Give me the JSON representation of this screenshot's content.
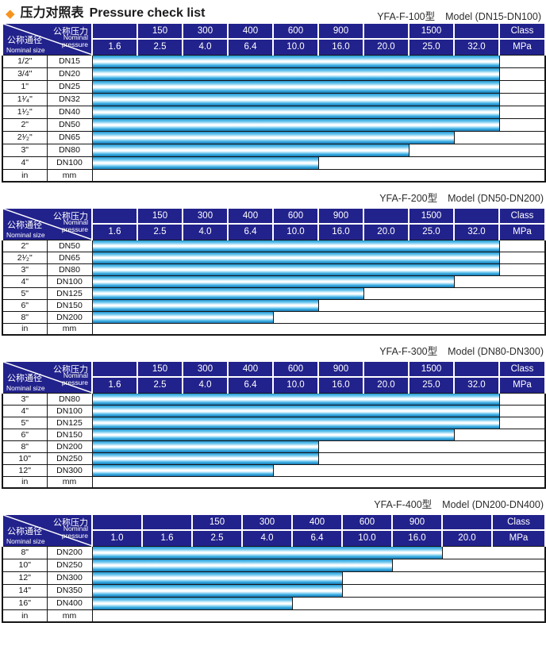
{
  "title": {
    "zh": "压力对照表",
    "en": "Pressure check list",
    "diamond": "◆"
  },
  "colors": {
    "accent_orange": "#F7941E",
    "header_navy": "#22228C",
    "grid_black": "#161616",
    "bar_edge_cyan": "#1E82BC",
    "bar_bright_cyan": "#3FB0E4",
    "bar_highlight_white": "#FFFFFF"
  },
  "corner": {
    "pressure_zh": "公称压力",
    "pressure_en_line1": "Nominal",
    "pressure_en_line2": "pressure",
    "size_zh": "公称通径",
    "size_en": "Nominal size"
  },
  "tables": [
    {
      "model": "YFA-F-100型",
      "range": "Model (DN15-DN100)",
      "class_row": [
        "",
        "150",
        "300",
        "400",
        "600",
        "900",
        "",
        "1500",
        "",
        "Class"
      ],
      "mpa_row": [
        "1.6",
        "2.5",
        "4.0",
        "6.4",
        "10.0",
        "16.0",
        "20.0",
        "25.0",
        "32.0",
        "MPa"
      ],
      "rows": [
        {
          "size": "1/2\"",
          "dn": "DN15",
          "max_mpa": "32.0",
          "bar_cols": 9
        },
        {
          "size": "3/4\"",
          "dn": "DN20",
          "max_mpa": "32.0",
          "bar_cols": 9
        },
        {
          "size": "1\"",
          "dn": "DN25",
          "max_mpa": "32.0",
          "bar_cols": 9
        },
        {
          "size": "1¹⁄₄\"",
          "dn": "DN32",
          "max_mpa": "32.0",
          "bar_cols": 9
        },
        {
          "size": "1¹⁄₂\"",
          "dn": "DN40",
          "max_mpa": "32.0",
          "bar_cols": 9
        },
        {
          "size": "2\"",
          "dn": "DN50",
          "max_mpa": "32.0",
          "bar_cols": 9
        },
        {
          "size": "2¹⁄₂\"",
          "dn": "DN65",
          "max_mpa": "25.0",
          "bar_cols": 8
        },
        {
          "size": "3\"",
          "dn": "DN80",
          "max_mpa": "20.0",
          "bar_cols": 7
        },
        {
          "size": "4\"",
          "dn": "DN100",
          "max_mpa": "10.0",
          "bar_cols": 5
        }
      ],
      "unit_row": {
        "size": "in",
        "dn": "mm"
      }
    },
    {
      "model": "YFA-F-200型",
      "range": "Model (DN50-DN200)",
      "class_row": [
        "",
        "150",
        "300",
        "400",
        "600",
        "900",
        "",
        "1500",
        "",
        "Class"
      ],
      "mpa_row": [
        "1.6",
        "2.5",
        "4.0",
        "6.4",
        "10.0",
        "16.0",
        "20.0",
        "25.0",
        "32.0",
        "MPa"
      ],
      "rows": [
        {
          "size": "2\"",
          "dn": "DN50",
          "max_mpa": "32.0",
          "bar_cols": 9
        },
        {
          "size": "2¹⁄₂\"",
          "dn": "DN65",
          "max_mpa": "32.0",
          "bar_cols": 9
        },
        {
          "size": "3\"",
          "dn": "DN80",
          "max_mpa": "32.0",
          "bar_cols": 9
        },
        {
          "size": "4\"",
          "dn": "DN100",
          "max_mpa": "25.0",
          "bar_cols": 8
        },
        {
          "size": "5\"",
          "dn": "DN125",
          "max_mpa": "16.0",
          "bar_cols": 6
        },
        {
          "size": "6\"",
          "dn": "DN150",
          "max_mpa": "10.0",
          "bar_cols": 5
        },
        {
          "size": "8\"",
          "dn": "DN200",
          "max_mpa": "6.4",
          "bar_cols": 4
        }
      ],
      "unit_row": {
        "size": "in",
        "dn": "mm"
      }
    },
    {
      "model": "YFA-F-300型",
      "range": "Model (DN80-DN300)",
      "class_row": [
        "",
        "150",
        "300",
        "400",
        "600",
        "900",
        "",
        "1500",
        "",
        "Class"
      ],
      "mpa_row": [
        "1.6",
        "2.5",
        "4.0",
        "6.4",
        "10.0",
        "16.0",
        "20.0",
        "25.0",
        "32.0",
        "MPa"
      ],
      "rows": [
        {
          "size": "3\"",
          "dn": "DN80",
          "max_mpa": "32.0",
          "bar_cols": 9
        },
        {
          "size": "4\"",
          "dn": "DN100",
          "max_mpa": "32.0",
          "bar_cols": 9
        },
        {
          "size": "5\"",
          "dn": "DN125",
          "max_mpa": "32.0",
          "bar_cols": 9
        },
        {
          "size": "6\"",
          "dn": "DN150",
          "max_mpa": "25.0",
          "bar_cols": 8
        },
        {
          "size": "8\"",
          "dn": "DN200",
          "max_mpa": "10.0",
          "bar_cols": 5
        },
        {
          "size": "10\"",
          "dn": "DN250",
          "max_mpa": "10.0",
          "bar_cols": 5
        },
        {
          "size": "12\"",
          "dn": "DN300",
          "max_mpa": "6.4",
          "bar_cols": 4
        }
      ],
      "unit_row": {
        "size": "in",
        "dn": "mm"
      }
    },
    {
      "model": "YFA-F-400型",
      "range": "Model (DN200-DN400)",
      "class_row": [
        "",
        "",
        "150",
        "300",
        "400",
        "600",
        "900",
        "",
        "Class"
      ],
      "mpa_row": [
        "1.0",
        "1.6",
        "2.5",
        "4.0",
        "6.4",
        "10.0",
        "16.0",
        "20.0",
        "MPa"
      ],
      "rows": [
        {
          "size": "8\"",
          "dn": "DN200",
          "max_mpa": "16.0",
          "bar_cols": 7
        },
        {
          "size": "10\"",
          "dn": "DN250",
          "max_mpa": "10.0",
          "bar_cols": 6
        },
        {
          "size": "12\"",
          "dn": "DN300",
          "max_mpa": "6.4",
          "bar_cols": 5
        },
        {
          "size": "14\"",
          "dn": "DN350",
          "max_mpa": "6.4",
          "bar_cols": 5
        },
        {
          "size": "16\"",
          "dn": "DN400",
          "max_mpa": "4.0",
          "bar_cols": 4
        }
      ],
      "unit_row": {
        "size": "in",
        "dn": "mm"
      }
    }
  ]
}
